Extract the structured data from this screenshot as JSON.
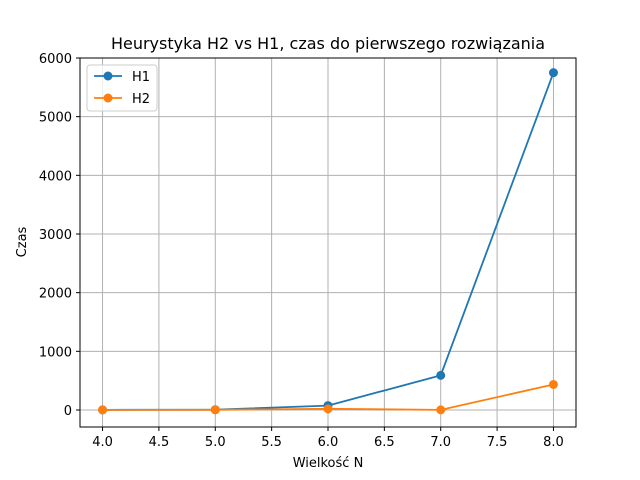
{
  "chart_data": {
    "type": "line",
    "title": "Heurystyka H2 vs H1, czas do pierwszego rozwiązania",
    "xlabel": "Wielkość N",
    "ylabel": "Czas",
    "x": [
      4,
      5,
      6,
      7,
      8
    ],
    "series": [
      {
        "name": "H1",
        "color": "#1f77b4",
        "values": [
          2,
          5,
          75,
          590,
          5750
        ]
      },
      {
        "name": "H2",
        "color": "#ff7f0e",
        "values": [
          1,
          3,
          20,
          2,
          435
        ]
      }
    ],
    "xlim": [
      3.8,
      8.2
    ],
    "ylim": [
      -290,
      6000
    ],
    "xticks": [
      "4.0",
      "4.5",
      "5.0",
      "5.5",
      "6.0",
      "6.5",
      "7.0",
      "7.5",
      "8.0"
    ],
    "yticks": [
      "0",
      "1000",
      "2000",
      "3000",
      "4000",
      "5000",
      "6000"
    ],
    "grid": true,
    "legend": "upper-left"
  }
}
